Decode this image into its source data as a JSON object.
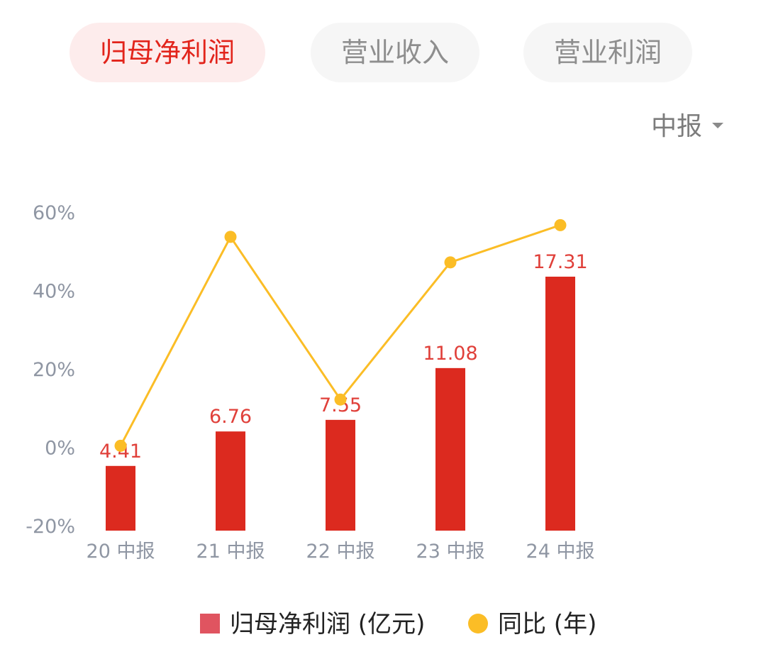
{
  "tabs": [
    {
      "label": "归母净利润",
      "active": true
    },
    {
      "label": "营业收入",
      "active": false
    },
    {
      "label": "营业利润",
      "active": false
    }
  ],
  "period_selector": {
    "label": "中报",
    "icon": "caret-down-icon"
  },
  "colors": {
    "bar": "#dc2a1f",
    "bar_label": "#e0403a",
    "line": "#fbbd26",
    "axis_text": "#8f96a3",
    "legend_bar": "#e05460"
  },
  "chart_data": {
    "type": "bar",
    "categories": [
      "20 中报",
      "21 中报",
      "22 中报",
      "23 中报",
      "24 中报"
    ],
    "series": [
      {
        "name": "归母净利润 (亿元)",
        "type": "bar",
        "values": [
          4.41,
          6.76,
          7.55,
          11.08,
          17.31
        ]
      },
      {
        "name": "同比 (年)",
        "type": "line",
        "axis": "left",
        "values": [
          0.2,
          53.5,
          12,
          47,
          56.5
        ]
      }
    ],
    "y_axis": {
      "ticks": [
        "60%",
        "40%",
        "20%",
        "0%",
        "-20%"
      ],
      "range": [
        -20,
        60
      ]
    },
    "bar_value_range": [
      0,
      17.31
    ],
    "grid": false,
    "legend_position": "bottom"
  },
  "legend": {
    "bar_label": "归母净利润 (亿元)",
    "line_label": "同比 (年)"
  }
}
